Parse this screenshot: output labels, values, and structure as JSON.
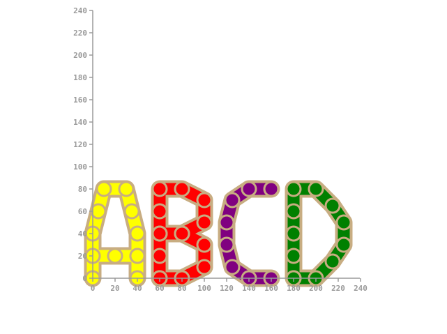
{
  "chart_data": {
    "type": "line",
    "title": "",
    "xlabel": "",
    "ylabel": "",
    "xlim": [
      0,
      240
    ],
    "ylim": [
      0,
      240
    ],
    "x_ticks": [
      "0",
      "20",
      "40",
      "60",
      "80",
      "100",
      "120",
      "140",
      "160",
      "180",
      "200",
      "220",
      "240"
    ],
    "y_ticks": [
      "0",
      "20",
      "40",
      "60",
      "80",
      "100",
      "120",
      "140",
      "160",
      "180",
      "200",
      "220",
      "240"
    ],
    "grid": false,
    "legend": "none",
    "series": [
      {
        "color": "#ffff00",
        "line_color": "#ffff00",
        "outline_color": "#c8ad82",
        "segments": [
          [
            [
              0,
              0
            ],
            [
              0,
              20
            ],
            [
              0,
              40
            ],
            [
              5,
              60
            ],
            [
              10,
              80
            ],
            [
              30,
              80
            ],
            [
              35,
              60
            ],
            [
              40,
              40
            ],
            [
              40,
              20
            ],
            [
              40,
              0
            ]
          ],
          [
            [
              0,
              20
            ],
            [
              20,
              20
            ],
            [
              40,
              20
            ]
          ]
        ]
      },
      {
        "color": "#ff0000",
        "line_color": "#ff0000",
        "outline_color": "#c8ad82",
        "segments": [
          [
            [
              60,
              0
            ],
            [
              60,
              20
            ],
            [
              60,
              40
            ],
            [
              60,
              60
            ],
            [
              60,
              80
            ],
            [
              80,
              80
            ],
            [
              100,
              70
            ],
            [
              100,
              50
            ],
            [
              80,
              40
            ],
            [
              60,
              40
            ]
          ],
          [
            [
              80,
              40
            ],
            [
              100,
              30
            ],
            [
              100,
              10
            ],
            [
              80,
              0
            ],
            [
              60,
              0
            ]
          ]
        ]
      },
      {
        "color": "#800080",
        "line_color": "#800080",
        "outline_color": "#c8ad82",
        "segments": [
          [
            [
              160,
              80
            ],
            [
              140,
              80
            ],
            [
              125,
              70
            ],
            [
              120,
              50
            ],
            [
              120,
              30
            ],
            [
              125,
              10
            ],
            [
              140,
              0
            ],
            [
              160,
              0
            ]
          ]
        ]
      },
      {
        "color": "#008000",
        "line_color": "#008000",
        "outline_color": "#c8ad82",
        "segments": [
          [
            [
              180,
              0
            ],
            [
              180,
              20
            ],
            [
              180,
              40
            ],
            [
              180,
              60
            ],
            [
              180,
              80
            ],
            [
              200,
              80
            ],
            [
              215,
              65
            ],
            [
              225,
              50
            ],
            [
              225,
              30
            ],
            [
              215,
              15
            ],
            [
              200,
              0
            ],
            [
              180,
              0
            ]
          ]
        ]
      }
    ]
  }
}
